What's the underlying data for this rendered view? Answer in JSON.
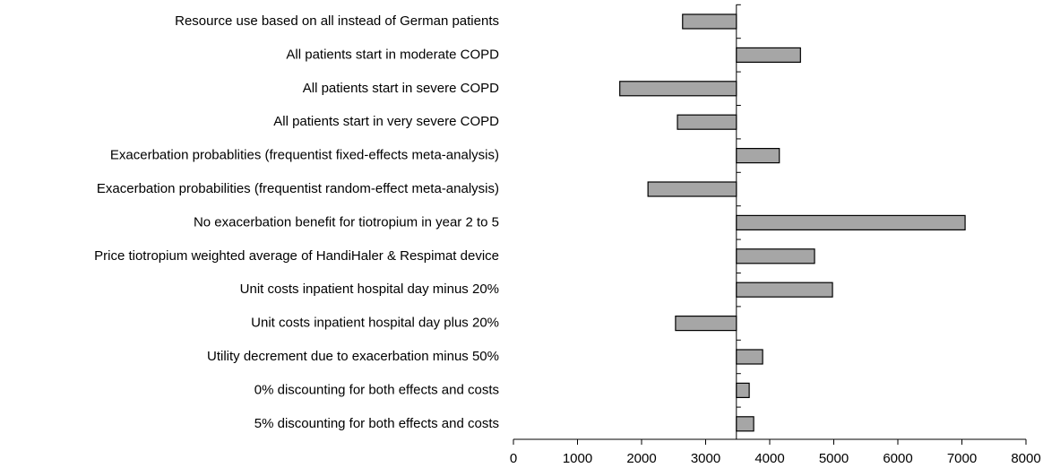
{
  "chart_data": {
    "type": "tornado",
    "categories": [
      "Resource use based on all instead of German patients",
      "All patients start in moderate COPD",
      "All patients start in severe COPD",
      "All patients start in very severe COPD",
      "Exacerbation probablities (frequentist fixed-effects meta-analysis)",
      "Exacerbation probabilities (frequentist random-effect meta-analysis)",
      "No exacerbation benefit for tiotropium in year 2 to 5",
      "Price tiotropium weighted average of HandiHaler & Respimat device",
      "Unit costs inpatient hospital day minus 20%",
      "Unit costs inpatient hospital day plus 20%",
      "Utility decrement due to exacerbation minus 50%",
      "0% discounting for both effects and costs",
      "5% discounting for both effects and costs"
    ],
    "values": [
      2640,
      4480,
      1660,
      2560,
      4150,
      2100,
      7050,
      4700,
      4980,
      2530,
      3890,
      3680,
      3750
    ],
    "base": 3480,
    "color": "#a6a6a6",
    "xlim": [
      0,
      8000
    ],
    "xticks": [
      0,
      1000,
      2000,
      3000,
      4000,
      5000,
      6000,
      7000,
      8000
    ]
  }
}
